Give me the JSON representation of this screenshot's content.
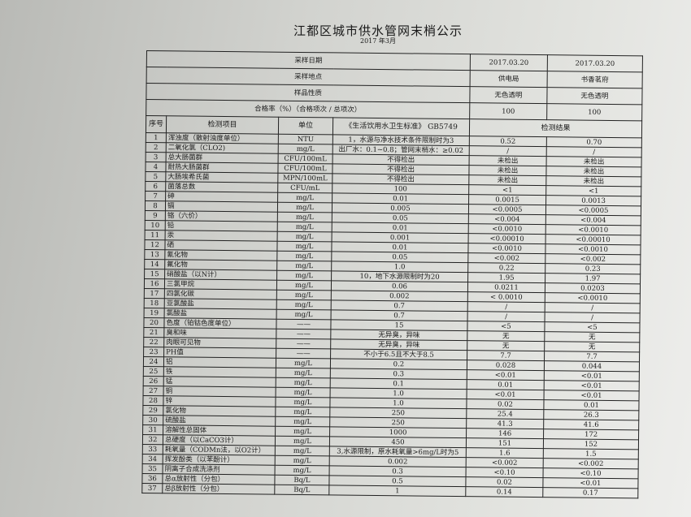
{
  "title": "江都区城市供水管网末梢公示",
  "subtitle": "2017 年3月",
  "meta": [
    {
      "label": "采样日期",
      "v1": "2017.03.20",
      "v2": "2017.03.20"
    },
    {
      "label": "采样地点",
      "v1": "供电局",
      "v2": "书香茗府"
    },
    {
      "label": "样品性质",
      "v1": "无色透明",
      "v2": "无色透明"
    },
    {
      "label": "合格率（%）（合格项次 / 总项次）",
      "v1": "100",
      "v2": "100"
    }
  ],
  "header": {
    "no": "序号",
    "item": "检测项目",
    "unit": "单位",
    "standard": "《生活饮用水卫生标准》 GB5749",
    "result": "检测结果"
  },
  "rows": [
    [
      "1",
      "浑浊度（散射浊度单位）",
      "NTU",
      "1，水源与净水技术条件限制时为3",
      "0.52",
      "0.70"
    ],
    [
      "2",
      "二氧化氯（CLO2)",
      "mg/L",
      "出厂水：0.1~0.8；管网末梢水：≥0.02",
      "/",
      "/"
    ],
    [
      "3",
      "总大肠菌群",
      "CFU/100mL",
      "不得检出",
      "未检出",
      "未检出"
    ],
    [
      "4",
      "耐热大肠菌群",
      "CFU/100mL",
      "不得检出",
      "未检出",
      "未检出"
    ],
    [
      "5",
      "大肠埃希氏菌",
      "MPN/100mL",
      "不得检出",
      "未检出",
      "未检出"
    ],
    [
      "6",
      "菌落总数",
      "CFU/mL",
      "100",
      "<1",
      "<1"
    ],
    [
      "7",
      "砷",
      "mg/L",
      "0.01",
      "0.0015",
      "0.0013"
    ],
    [
      "8",
      "镉",
      "mg/L",
      "0.005",
      "<0.0005",
      "<0.0005"
    ],
    [
      "9",
      "铬（六价）",
      "mg/L",
      "0.05",
      "<0.004",
      "<0.004"
    ],
    [
      "10",
      "铅",
      "mg/L",
      "0.01",
      "<0.0010",
      "<0.0010"
    ],
    [
      "11",
      "汞",
      "mg/L",
      "0.001",
      "<0.00010",
      "<0.00010"
    ],
    [
      "12",
      "硒",
      "mg/L",
      "0.01",
      "<0.0010",
      "<0.0010"
    ],
    [
      "13",
      "氰化物",
      "mg/L",
      "0.05",
      "<0.002",
      "<0.002"
    ],
    [
      "14",
      "氟化物",
      "mg/L",
      "1.0",
      "0.22",
      "0.23"
    ],
    [
      "15",
      "硝酸盐（以N计）",
      "mg/L",
      "10，地下水源限制时为20",
      "1.95",
      "1.97"
    ],
    [
      "16",
      "三氯甲烷",
      "mg/L",
      "0.06",
      "0.0211",
      "0.0203"
    ],
    [
      "17",
      "四氯化碳",
      "mg/L",
      "0.002",
      "< 0.0010",
      "<0.0010"
    ],
    [
      "18",
      "亚氯酸盐",
      "mg/L",
      "0.7",
      "/",
      "/"
    ],
    [
      "19",
      "氯酸盐",
      "mg/L",
      "0.7",
      "/",
      "/"
    ],
    [
      "20",
      "色度（铂钴色度单位）",
      "——",
      "15",
      "<5",
      "<5"
    ],
    [
      "21",
      "臭和味",
      "——",
      "无异臭，异味",
      "无",
      "无"
    ],
    [
      "22",
      "肉眼可见物",
      "——",
      "无异臭，异味",
      "无",
      "无"
    ],
    [
      "23",
      "PH值",
      "——",
      "不小于6.5且不大于8.5",
      "7.7",
      "7.7"
    ],
    [
      "24",
      "铝",
      "mg/L",
      "0.2",
      "0.028",
      "0.044"
    ],
    [
      "25",
      "铁",
      "mg/L",
      "0.3",
      "<0.01",
      "<0.01"
    ],
    [
      "26",
      "锰",
      "mg/L",
      "0.1",
      "0.01",
      "<0.01"
    ],
    [
      "27",
      "铜",
      "mg/L",
      "1.0",
      "<0.01",
      "<0.01"
    ],
    [
      "28",
      "锌",
      "mg/L",
      "1.0",
      "0.02",
      "0.01"
    ],
    [
      "29",
      "氯化物",
      "mg/L",
      "250",
      "25.4",
      "26.3"
    ],
    [
      "30",
      "硫酸盐",
      "mg/L",
      "250",
      "41.3",
      "41.6"
    ],
    [
      "31",
      "溶解性总固体",
      "mg/L",
      "1000",
      "146",
      "172"
    ],
    [
      "32",
      "总硬度（以CaCO3计）",
      "mg/L",
      "450",
      "151",
      "152"
    ],
    [
      "33",
      "耗氧量（CODMn法，以O2计）",
      "mg/L",
      "3,水源限制，原水耗氧量>6mg/L时为5",
      "1.6",
      "1.5"
    ],
    [
      "34",
      "挥发酚类（以苯酚计）",
      "mg/L",
      "0.002",
      "<0.002",
      "<0.002"
    ],
    [
      "35",
      "阴离子合成洗涤剂",
      "mg/L",
      "0.3",
      "<0.10",
      "<0.10"
    ],
    [
      "36",
      "总α放射性（分包）",
      "Bq/L",
      "0.5",
      "0.02",
      "<0.01"
    ],
    [
      "37",
      "总β放射性（分包）",
      "Bq/L",
      "1",
      "0.14",
      "0.17"
    ]
  ]
}
